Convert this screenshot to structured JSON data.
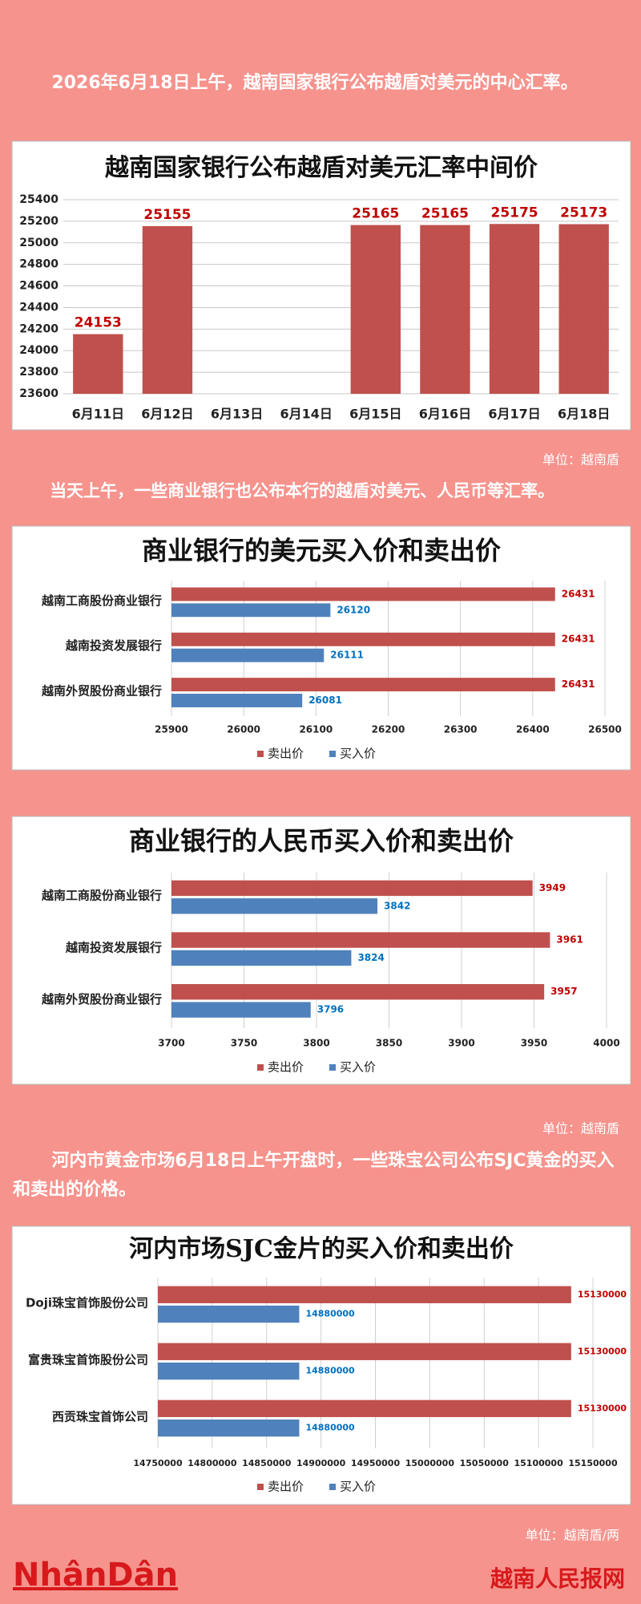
{
  "intro": "2026年6月18日上午，越南国家银行公布越盾对美元的中心汇率。",
  "text_2": "当天上午，一些商业银行也公布本行的越盾对美元、人民币等汇率。",
  "text_3": "河内市黄金市场6月18日上午开盘时，一些珠宝公司公布SJC黄金的买入和卖出的价格。",
  "footer": {
    "logo": "NhânDân",
    "site": "越南人民报网"
  },
  "chart_data": [
    {
      "type": "bar",
      "title": "越南国家银行公布越盾对美元汇率中间价",
      "categories": [
        "6月11日",
        "6月12日",
        "6月13日",
        "6月14日",
        "6月15日",
        "6月16日",
        "6月17日",
        "6月18日"
      ],
      "values": [
        24153,
        25155,
        null,
        null,
        25165,
        25165,
        25175,
        25173
      ],
      "color": "#c0504d",
      "ylim": [
        23600,
        25400
      ],
      "yticks": [
        23600,
        23800,
        24000,
        24200,
        24400,
        24600,
        24800,
        25000,
        25200,
        25400
      ],
      "grid": true,
      "unit": "单位：越南盾"
    },
    {
      "type": "barh",
      "title": "商业银行的美元买入价和卖出价",
      "categories": [
        "越南工商股份商业银行",
        "越南投资发展银行",
        "越南外贸股份商业银行"
      ],
      "series": [
        {
          "name": "卖出价",
          "color": "#c0504d",
          "values": [
            26431,
            26431,
            26431
          ]
        },
        {
          "name": "买入价",
          "color": "#4f81bd",
          "values": [
            26120,
            26111,
            26081
          ]
        }
      ],
      "xlim": [
        25900,
        26500
      ],
      "xticks": [
        25900,
        26000,
        26100,
        26200,
        26300,
        26400,
        26500
      ],
      "grid": true,
      "legend": "bottom"
    },
    {
      "type": "barh",
      "title": "商业银行的人民币买入价和卖出价",
      "categories": [
        "越南工商股份商业银行",
        "越南投资发展银行",
        "越南外贸股份商业银行"
      ],
      "series": [
        {
          "name": "卖出价",
          "color": "#c0504d",
          "values": [
            3949,
            3961,
            3957
          ]
        },
        {
          "name": "买入价",
          "color": "#4f81bd",
          "values": [
            3842,
            3824,
            3796
          ]
        }
      ],
      "xlim": [
        3700,
        4000
      ],
      "xticks": [
        3700,
        3750,
        3800,
        3850,
        3900,
        3950,
        4000
      ],
      "grid": true,
      "legend": "bottom",
      "unit": "单位：越南盾"
    },
    {
      "type": "barh",
      "title": "河内市场SJC金片的买入价和卖出价",
      "categories": [
        "Doji珠宝首饰股份公司",
        "富贵珠宝首饰股份公司",
        "西贡珠宝首饰公司"
      ],
      "series": [
        {
          "name": "卖出价",
          "color": "#c0504d",
          "values": [
            15130000,
            15130000,
            15130000
          ]
        },
        {
          "name": "买入价",
          "color": "#4f81bd",
          "values": [
            14880000,
            14880000,
            14880000
          ]
        }
      ],
      "xlim": [
        14750000,
        15150000
      ],
      "xticks": [
        14750000,
        14800000,
        14850000,
        14900000,
        14950000,
        15000000,
        15050000,
        15100000,
        15150000
      ],
      "grid": true,
      "legend": "bottom",
      "unit": "单位：越南盾/两"
    }
  ]
}
